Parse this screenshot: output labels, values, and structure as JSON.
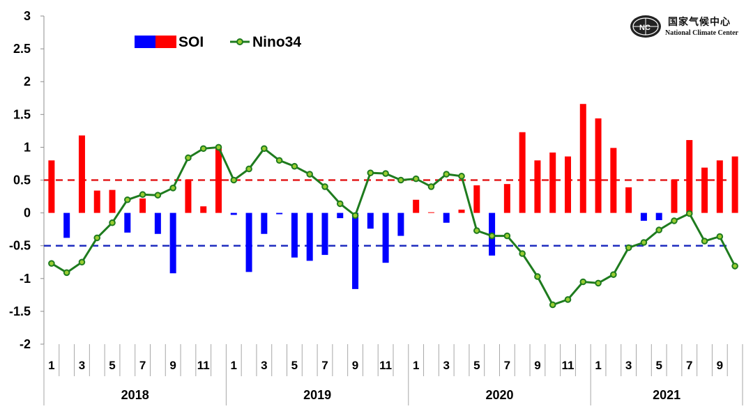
{
  "logo": {
    "cn": "国家气候中心",
    "en": "National Climate Center"
  },
  "chart_data": {
    "type": "bar+line",
    "title": "",
    "xlabel": "",
    "ylabel": "",
    "ylim": [
      -2,
      3
    ],
    "yticks": [
      -2,
      -1.5,
      -1,
      -0.5,
      0,
      0.5,
      1,
      1.5,
      2,
      2.5,
      3
    ],
    "ytick_labels": [
      "-2",
      "-1.5",
      "-1",
      "-0.5",
      "0",
      "0.5",
      "1",
      "1.5",
      "2",
      "2.5",
      "3"
    ],
    "reference_lines": [
      {
        "value": 0.5,
        "color": "#e31a1c",
        "style": "dashed"
      },
      {
        "value": -0.5,
        "color": "#1f2dbf",
        "style": "dashed"
      }
    ],
    "years": [
      "2018",
      "2019",
      "2020",
      "2021"
    ],
    "month_labels": [
      "1",
      "",
      "3",
      "",
      "5",
      "",
      "7",
      "",
      "9",
      "",
      "11",
      "",
      "1",
      "",
      "3",
      "",
      "5",
      "",
      "7",
      "",
      "9",
      "",
      "11",
      "",
      "1",
      "",
      "3",
      "",
      "5",
      "",
      "7",
      "",
      "9",
      "",
      "11",
      "",
      "1",
      "",
      "3",
      "",
      "5",
      "",
      "7",
      "",
      "9",
      ""
    ],
    "legend": {
      "position": "top-left",
      "soi_label": "SOI",
      "nino_label": "Nino34"
    },
    "colors": {
      "soi_positive": "#ff0000",
      "soi_negative": "#0000ff",
      "nino": "#1e7b1e",
      "nino_marker_fill": "#9acd32"
    },
    "series": [
      {
        "name": "SOI",
        "kind": "bar",
        "values": [
          0.8,
          -0.38,
          1.18,
          0.34,
          0.35,
          -0.3,
          0.22,
          -0.32,
          -0.92,
          0.51,
          0.1,
          1.0,
          -0.03,
          -0.9,
          -0.32,
          -0.02,
          -0.68,
          -0.73,
          -0.64,
          -0.08,
          -1.16,
          -0.24,
          -0.76,
          -0.35,
          0.2,
          0.01,
          -0.15,
          0.05,
          0.42,
          -0.65,
          0.44,
          1.23,
          0.8,
          0.92,
          0.86,
          1.66,
          1.44,
          0.99,
          0.39,
          -0.12,
          -0.11,
          0.51,
          1.11,
          0.69,
          0.8,
          0.86
        ]
      },
      {
        "name": "Nino34",
        "kind": "line",
        "values": [
          -0.77,
          -0.91,
          -0.75,
          -0.38,
          -0.15,
          0.2,
          0.28,
          0.27,
          0.38,
          0.84,
          0.98,
          1.0,
          0.5,
          0.67,
          0.98,
          0.8,
          0.71,
          0.59,
          0.4,
          0.14,
          -0.04,
          0.61,
          0.6,
          0.5,
          0.52,
          0.4,
          0.59,
          0.56,
          -0.27,
          -0.35,
          -0.35,
          -0.62,
          -0.97,
          -1.4,
          -1.32,
          -1.05,
          -1.07,
          -0.94,
          -0.53,
          -0.45,
          -0.26,
          -0.12,
          -0.01,
          -0.43,
          -0.36,
          -0.81
        ]
      }
    ]
  }
}
